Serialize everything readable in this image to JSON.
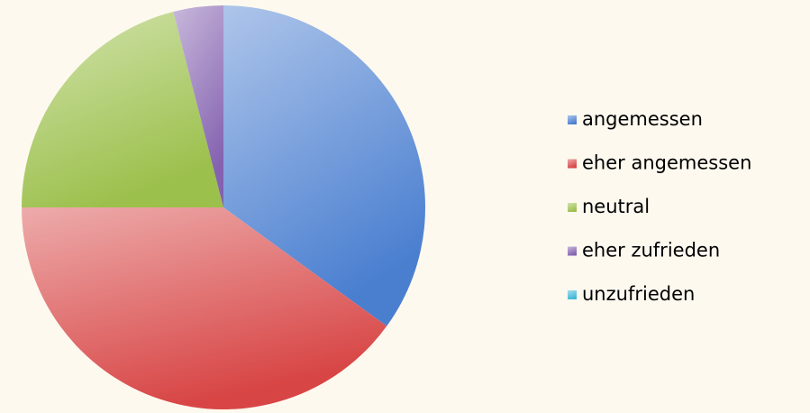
{
  "chart_data": {
    "type": "pie",
    "categories": [
      "angemessen",
      "eher angemessen",
      "neutral",
      "eher zufrieden",
      "unzufrieden"
    ],
    "values": [
      35,
      40,
      21,
      4,
      0
    ],
    "colors": [
      "#4a7fd0",
      "#d84545",
      "#9cc04c",
      "#8462b0",
      "#40b8d8"
    ],
    "legend": "right"
  }
}
